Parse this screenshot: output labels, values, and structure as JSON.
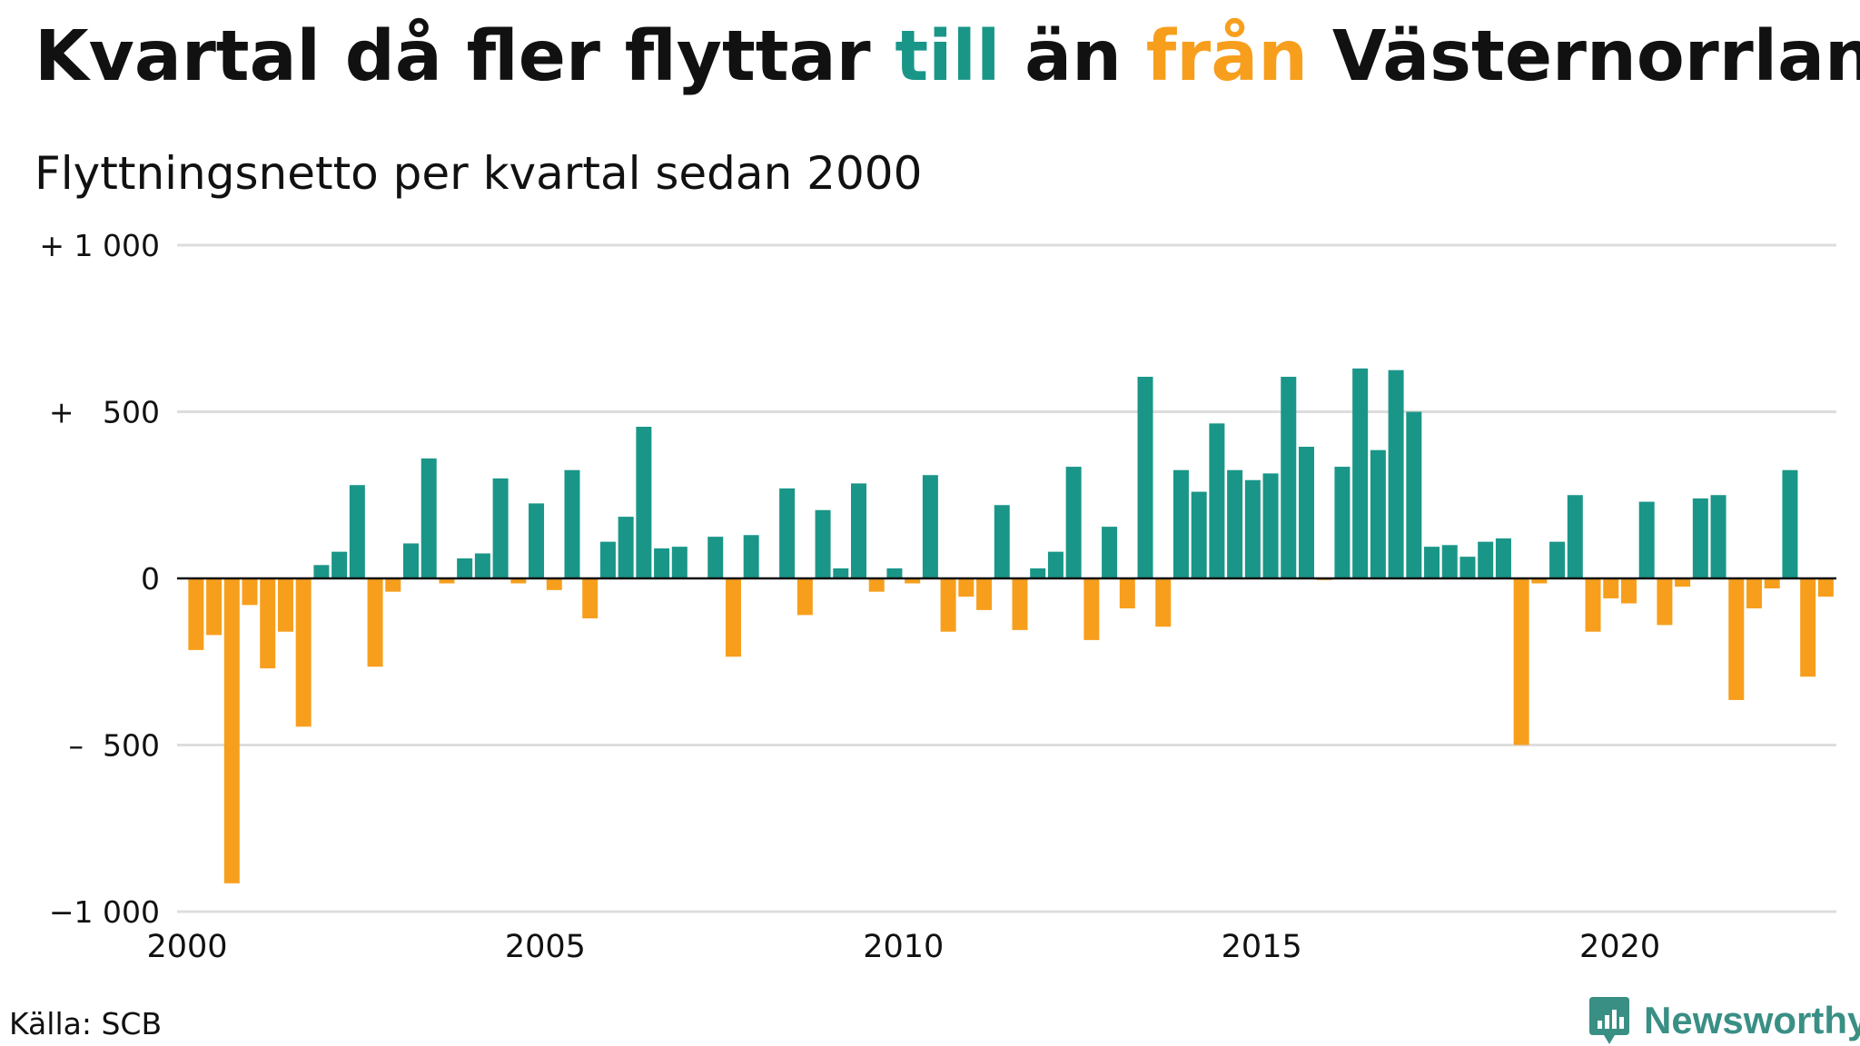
{
  "title": {
    "part1": "Kvartal då fler flyttar ",
    "till": "till",
    "part2": " än ",
    "fran": "från",
    "part3": " Västernorrland"
  },
  "subtitle": "Flyttningsnetto per kvartal sedan 2000",
  "source": "Källa: SCB",
  "brand": "Newsworthy",
  "colors": {
    "positive": "#1a9688",
    "negative": "#f79f1d",
    "grid": "#dddddd",
    "baseline": "#111111"
  },
  "chart_data": {
    "type": "bar",
    "ylim": [
      -1000,
      1000
    ],
    "yticks": [
      1000,
      500,
      0,
      -500,
      -1000
    ],
    "ytick_labels": [
      "+ 1 000",
      "+   500",
      "0",
      "–  500",
      "−1 000"
    ],
    "xticks": [
      2000,
      2005,
      2010,
      2015,
      2020
    ],
    "xtick_labels": [
      "2000",
      "2005",
      "2010",
      "2015",
      "2020"
    ],
    "grid": true,
    "series": [
      {
        "categories": [
          "2000Q1",
          "2000Q2",
          "2000Q3",
          "2000Q4",
          "2001Q1",
          "2001Q2",
          "2001Q3",
          "2001Q4",
          "2002Q1",
          "2002Q2",
          "2002Q3",
          "2002Q4",
          "2003Q1",
          "2003Q2",
          "2003Q3",
          "2003Q4",
          "2004Q1",
          "2004Q2",
          "2004Q3",
          "2004Q4",
          "2005Q1",
          "2005Q2",
          "2005Q3",
          "2005Q4",
          "2006Q1",
          "2006Q2",
          "2006Q3",
          "2006Q4",
          "2007Q1",
          "2007Q2",
          "2007Q3",
          "2007Q4",
          "2008Q1",
          "2008Q2",
          "2008Q3",
          "2008Q4",
          "2009Q1",
          "2009Q2",
          "2009Q3",
          "2009Q4",
          "2010Q1",
          "2010Q2",
          "2010Q3",
          "2010Q4",
          "2011Q1",
          "2011Q2",
          "2011Q3",
          "2011Q4",
          "2012Q1",
          "2012Q2",
          "2012Q3",
          "2012Q4",
          "2013Q1",
          "2013Q2",
          "2013Q3",
          "2013Q4",
          "2014Q1",
          "2014Q2",
          "2014Q3",
          "2014Q4",
          "2015Q1",
          "2015Q2",
          "2015Q3",
          "2015Q4",
          "2016Q1",
          "2016Q2",
          "2016Q3",
          "2016Q4",
          "2017Q1",
          "2017Q2",
          "2017Q3",
          "2017Q4",
          "2018Q1",
          "2018Q2",
          "2018Q3",
          "2018Q4",
          "2019Q1",
          "2019Q2",
          "2019Q3",
          "2019Q4",
          "2020Q1",
          "2020Q2",
          "2020Q3",
          "2020Q4",
          "2021Q1",
          "2021Q2",
          "2021Q3",
          "2021Q4",
          "2022Q1",
          "2022Q2",
          "2022Q3",
          "2022Q4"
        ],
        "values": [
          -215,
          -170,
          -915,
          -80,
          -270,
          -160,
          -445,
          40,
          80,
          280,
          -265,
          -40,
          105,
          360,
          -15,
          60,
          75,
          300,
          -15,
          225,
          -35,
          325,
          -120,
          110,
          185,
          455,
          90,
          95,
          0,
          125,
          -235,
          130,
          0,
          270,
          -110,
          205,
          30,
          285,
          -40,
          30,
          -15,
          310,
          -160,
          -55,
          -95,
          220,
          -155,
          30,
          80,
          335,
          -185,
          155,
          -90,
          605,
          -145,
          325,
          260,
          465,
          325,
          295,
          315,
          605,
          395,
          -5,
          335,
          630,
          385,
          625,
          500,
          95,
          100,
          65,
          110,
          120,
          -500,
          -15,
          110,
          250,
          -160,
          -60,
          -75,
          230,
          -140,
          -25,
          240,
          250,
          -365,
          -90,
          -30,
          325,
          -295,
          -55
        ]
      }
    ]
  }
}
